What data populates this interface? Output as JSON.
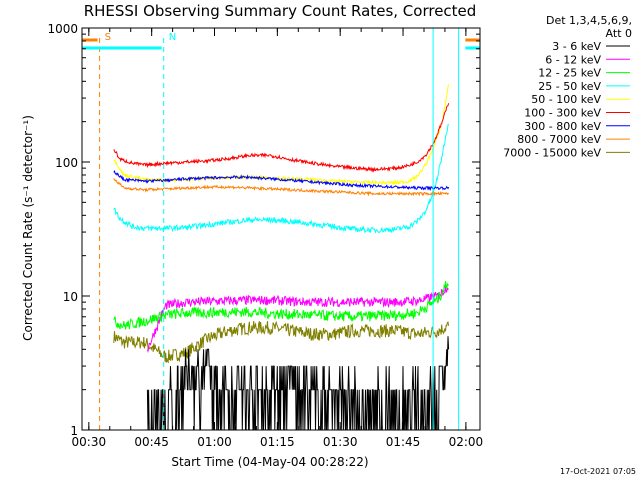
{
  "chart_data": {
    "type": "line",
    "title": "RHESSI Observing Summary Count Rates, Corrected",
    "xlabel": "Start Time (04-May-04 00:28:22)",
    "ylabel": "Corrected Count Rate (s⁻¹ detector⁻¹)",
    "y_scale": "log",
    "ylim": [
      1,
      1000
    ],
    "xlim_minutes": [
      0,
      95
    ],
    "x_tick_labels": [
      "00:30",
      "00:45",
      "01:00",
      "01:15",
      "01:30",
      "01:45",
      "02:00"
    ],
    "x_tick_minutes": [
      1.63,
      16.63,
      31.63,
      46.63,
      61.63,
      76.63,
      91.63
    ],
    "y_tick_labels": [
      "1",
      "10",
      "100",
      "1000"
    ],
    "y_tick_values": [
      1,
      10,
      100,
      1000
    ],
    "legend_header": [
      "Det 1,3,4,5,6,9,",
      "Att 0"
    ],
    "timestamp": "17-Oct-2021 07:05",
    "markers": [
      {
        "label": "S",
        "color": "#ff8000",
        "start_min": 4.2,
        "line": "dashed"
      },
      {
        "label": "N",
        "color": "#00ffff",
        "start_min": 19.5,
        "line": "dashed"
      }
    ],
    "boundaries": [
      {
        "color": "#00ffff",
        "minute": 89.9
      },
      {
        "color": "#00ffff",
        "minute": 83.8
      },
      {
        "color": "#ff8000",
        "minute": 98.0
      }
    ],
    "series": [
      {
        "name": "3 - 6 keV",
        "color": "#000000",
        "x": [
          15.6,
          20,
          25,
          30,
          35,
          40,
          45,
          50,
          55,
          60,
          65,
          70,
          75,
          80,
          85,
          87.5
        ],
        "y": [
          1,
          1.5,
          2.5,
          3,
          2.2,
          2.0,
          2.3,
          2.5,
          1.9,
          1.8,
          1.6,
          1.5,
          1.5,
          1.6,
          2.0,
          4.0
        ]
      },
      {
        "name": "6 - 12 keV",
        "color": "#ff00ff",
        "x": [
          15.6,
          20,
          25,
          30,
          35,
          40,
          45,
          50,
          55,
          60,
          65,
          70,
          75,
          80,
          85,
          87.5
        ],
        "y": [
          4.0,
          8.5,
          9.0,
          9.1,
          9.2,
          9.3,
          9.3,
          9.1,
          9.0,
          9.0,
          9.0,
          9.0,
          9.0,
          9.2,
          10.0,
          12.0
        ]
      },
      {
        "name": "12 - 25 keV",
        "color": "#00ff00",
        "x": [
          7.6,
          10,
          15,
          20,
          25,
          30,
          35,
          40,
          45,
          50,
          55,
          60,
          65,
          70,
          75,
          80,
          85,
          87.5
        ],
        "y": [
          6.5,
          6.0,
          6.5,
          7.2,
          7.5,
          7.5,
          7.6,
          7.6,
          7.4,
          7.3,
          7.2,
          7.1,
          7.0,
          7.1,
          7.2,
          7.5,
          9.5,
          13.0
        ]
      },
      {
        "name": "25 - 50 keV",
        "color": "#00ffff",
        "x": [
          7.6,
          9,
          12,
          15,
          20,
          25,
          30,
          35,
          40,
          45,
          50,
          55,
          60,
          65,
          70,
          75,
          78,
          80,
          82,
          84,
          85.5,
          87.5
        ],
        "y": [
          45,
          38,
          33,
          32,
          32,
          32.5,
          34,
          35.5,
          37,
          37,
          36,
          34.5,
          33,
          31.5,
          31,
          31.5,
          33,
          36,
          43,
          60,
          95,
          200
        ]
      },
      {
        "name": "50 - 100 keV",
        "color": "#ffff00",
        "x": [
          7.6,
          10,
          15,
          20,
          25,
          30,
          35,
          40,
          45,
          50,
          55,
          60,
          65,
          70,
          75,
          78,
          80,
          82,
          84,
          86,
          87.5
        ],
        "y": [
          105,
          80,
          74,
          73,
          74,
          76,
          77,
          77,
          76,
          75,
          74,
          72,
          71,
          70,
          70,
          72,
          78,
          95,
          130,
          200,
          380
        ]
      },
      {
        "name": "100 - 300 keV",
        "color": "#ff0000",
        "x": [
          7.6,
          9,
          12,
          15,
          20,
          25,
          30,
          35,
          40,
          45,
          50,
          55,
          60,
          65,
          70,
          75,
          78,
          80,
          82,
          84,
          86,
          87.5
        ],
        "y": [
          125,
          105,
          98,
          95,
          98,
          100,
          102,
          106,
          112,
          112,
          104,
          98,
          93,
          90,
          88,
          90,
          94,
          100,
          112,
          140,
          200,
          280
        ]
      },
      {
        "name": "300 - 800 keV",
        "color": "#0000ff",
        "x": [
          7.6,
          10,
          15,
          20,
          25,
          30,
          35,
          40,
          45,
          50,
          55,
          60,
          65,
          70,
          75,
          80,
          85,
          87.5
        ],
        "y": [
          85,
          74,
          72,
          73,
          75,
          76,
          77,
          77,
          75,
          73,
          71,
          69,
          67,
          66,
          65,
          64,
          64,
          64
        ]
      },
      {
        "name": "800 - 7000 keV",
        "color": "#ff8000",
        "x": [
          7.6,
          10,
          15,
          20,
          25,
          30,
          35,
          40,
          45,
          50,
          55,
          60,
          65,
          70,
          75,
          80,
          85,
          87.5
        ],
        "y": [
          75,
          64,
          62,
          63,
          64,
          65,
          65,
          64,
          63,
          62,
          61,
          60,
          59,
          58,
          58,
          58,
          58,
          58
        ]
      },
      {
        "name": "7000 - 15000 keV",
        "color": "#808000",
        "x": [
          7.6,
          10,
          15,
          20,
          25,
          30,
          35,
          40,
          45,
          50,
          55,
          60,
          65,
          70,
          75,
          80,
          85,
          87.5
        ],
        "y": [
          5.0,
          4.5,
          4.5,
          3.5,
          3.8,
          4.8,
          5.5,
          5.8,
          5.8,
          5.5,
          5.2,
          5.2,
          5.5,
          5.5,
          5.5,
          5.2,
          5.5,
          6.0
        ]
      }
    ]
  }
}
